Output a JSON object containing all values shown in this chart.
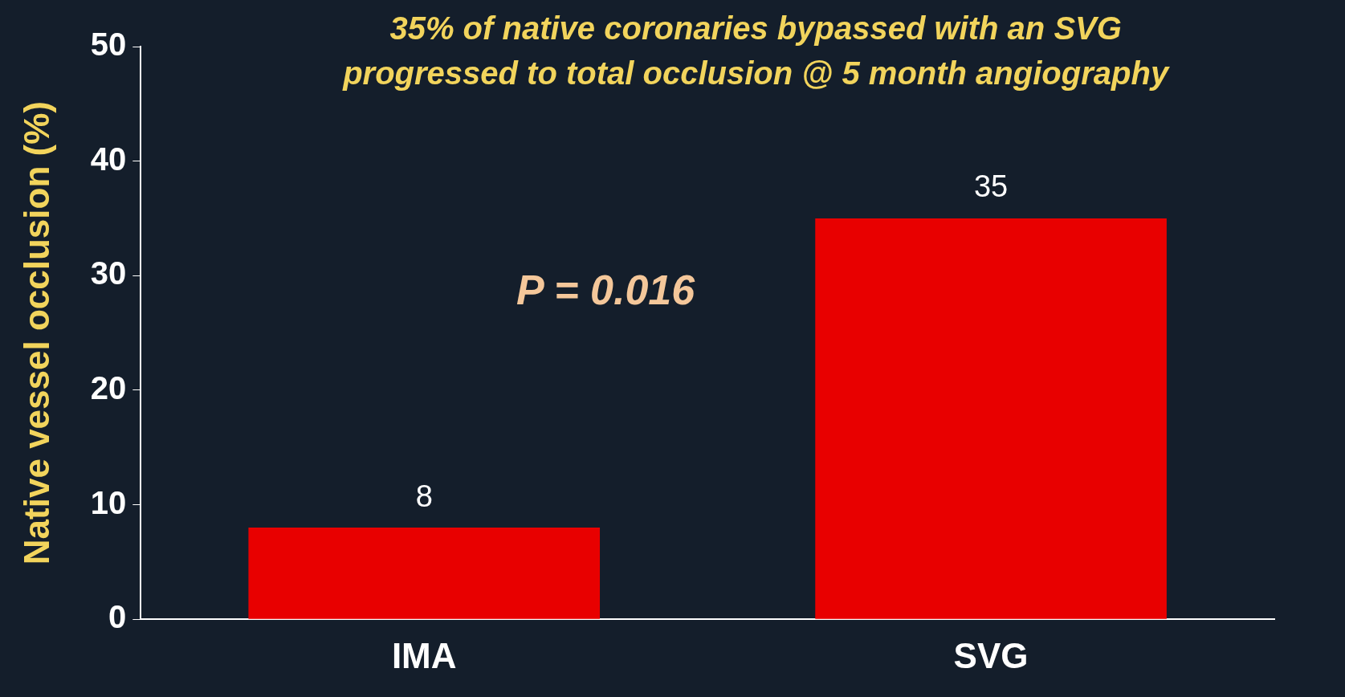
{
  "chart_data": {
    "type": "bar",
    "title": "35% of native coronaries bypassed with an SVG\nprogressed to total occlusion @ 5 month angiography",
    "ylabel": "Native vessel occlusion (%)",
    "categories": [
      "IMA",
      "SVG"
    ],
    "values": [
      8,
      35
    ],
    "color": "#e80000",
    "ylim": [
      0,
      50
    ],
    "yticks": [
      0,
      10,
      20,
      30,
      40,
      50
    ],
    "data_labels": true,
    "annotations": [
      "P = 0.016"
    ]
  }
}
